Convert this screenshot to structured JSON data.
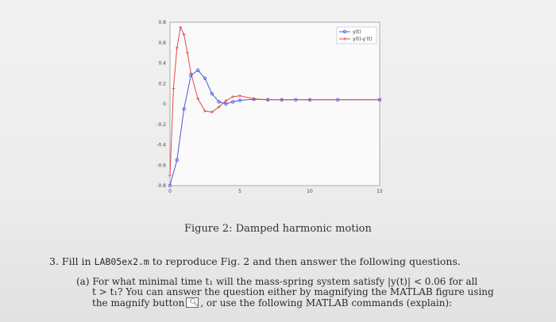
{
  "chart_data": {
    "type": "line",
    "title": "",
    "xlabel": "",
    "ylabel": "",
    "xlim": [
      0,
      15
    ],
    "ylim": [
      -0.8,
      0.8
    ],
    "xticks": [
      "0",
      "5",
      "10",
      "15"
    ],
    "yticks": [
      "-0.8",
      "-0.6",
      "-0.4",
      "-0.2",
      "0",
      "0.2",
      "0.4",
      "0.6",
      "0.8"
    ],
    "grid": true,
    "legend_position": "top-right",
    "series": [
      {
        "name": "y(t)",
        "color": "#4a56e0",
        "marker": "circle",
        "x": [
          0,
          0.5,
          1,
          1.5,
          2,
          2.5,
          3,
          3.5,
          4,
          4.5,
          5,
          6,
          7,
          8,
          9,
          10,
          12,
          15
        ],
        "y": [
          -0.8,
          -0.55,
          -0.05,
          0.28,
          0.33,
          0.25,
          0.1,
          0.02,
          0.0,
          0.02,
          0.035,
          0.045,
          0.04,
          0.04,
          0.04,
          0.04,
          0.04,
          0.04
        ]
      },
      {
        "name": "y(t)-y′(t)",
        "color": "#e04a4a",
        "marker": "plus",
        "x": [
          0,
          0.25,
          0.5,
          0.75,
          1,
          1.25,
          1.5,
          2,
          2.5,
          3,
          3.5,
          4,
          4.5,
          5,
          6,
          7,
          8,
          10,
          15
        ],
        "y": [
          -0.7,
          0.15,
          0.55,
          0.75,
          0.68,
          0.5,
          0.3,
          0.05,
          -0.07,
          -0.08,
          -0.03,
          0.03,
          0.07,
          0.08,
          0.05,
          0.04,
          0.04,
          0.04,
          0.04
        ]
      }
    ]
  },
  "caption": "Figure 2: Damped harmonic motion",
  "question": {
    "number": "3.",
    "prefix": "Fill in",
    "filename": "LAB05ex2.m",
    "suffix": "to reproduce Fig. 2 and then answer the following questions."
  },
  "part_a": {
    "label": "(a)",
    "line1": "For what minimal time t₁ will the mass-spring system satisfy |y(t)| < 0.06 for all",
    "line2": "t > t₁? You can answer the question either by magnifying the MATLAB figure using",
    "line3_before": "the magnify button",
    "line3_after": ", or use the following MATLAB commands (explain):",
    "magnify_icon": "magnify-icon"
  }
}
